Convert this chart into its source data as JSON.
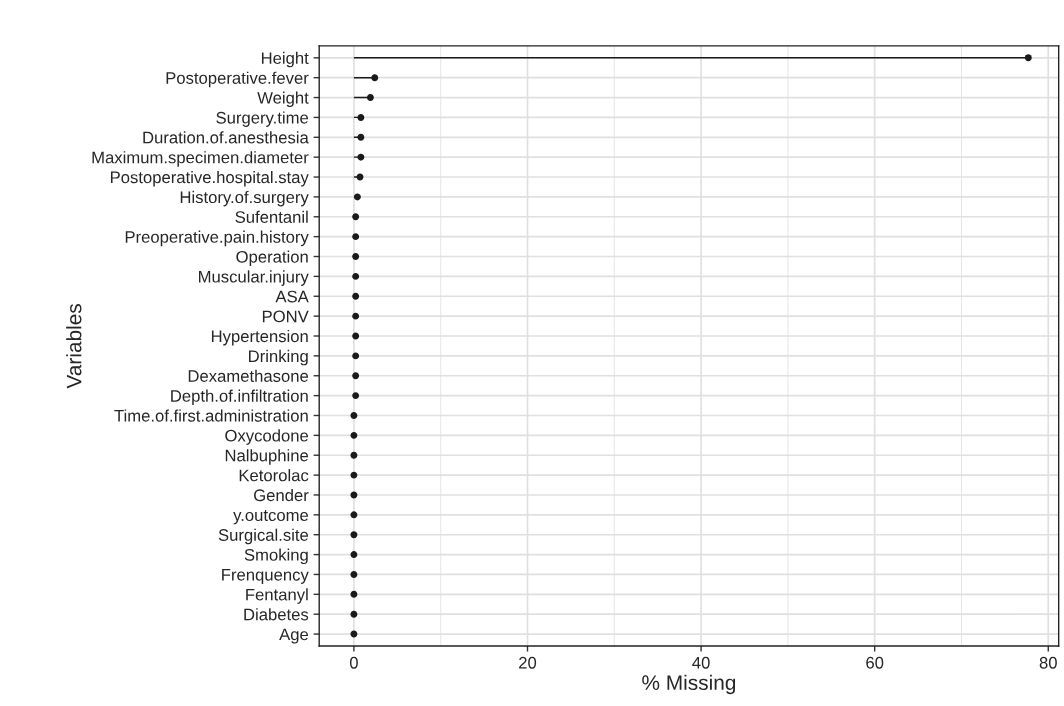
{
  "chart_data": {
    "type": "lollipop",
    "orientation": "horizontal",
    "xlabel": "% Missing",
    "ylabel": "Variables",
    "categories": [
      "Height",
      "Postoperative.fever",
      "Weight",
      "Surgery.time",
      "Duration.of.anesthesia",
      "Maximum.specimen.diameter",
      "Postoperative.hospital.stay",
      "History.of.surgery",
      "Sufentanil",
      "Preoperative.pain.history",
      "Operation",
      "Muscular.injury",
      "ASA",
      "PONV",
      "Hypertension",
      "Drinking",
      "Dexamethasone",
      "Depth.of.infiltration",
      "Time.of.first.administration",
      "Oxycodone",
      "Nalbuphine",
      "Ketorolac",
      "Gender",
      "y.outcome",
      "Surgical.site",
      "Smoking",
      "Frenquency",
      "Fentanyl",
      "Diabetes",
      "Age"
    ],
    "values": [
      77.7,
      2.4,
      1.9,
      0.8,
      0.8,
      0.8,
      0.7,
      0.4,
      0.2,
      0.2,
      0.2,
      0.2,
      0.2,
      0.2,
      0.2,
      0.2,
      0.2,
      0.2,
      0,
      0,
      0,
      0,
      0,
      0,
      0,
      0,
      0,
      0,
      0,
      0
    ],
    "color": "#1a1a1a",
    "marker": "circle",
    "xlim": [
      -4,
      81.2
    ],
    "xticks": [
      0,
      20,
      40,
      60,
      80
    ],
    "grid": true
  }
}
